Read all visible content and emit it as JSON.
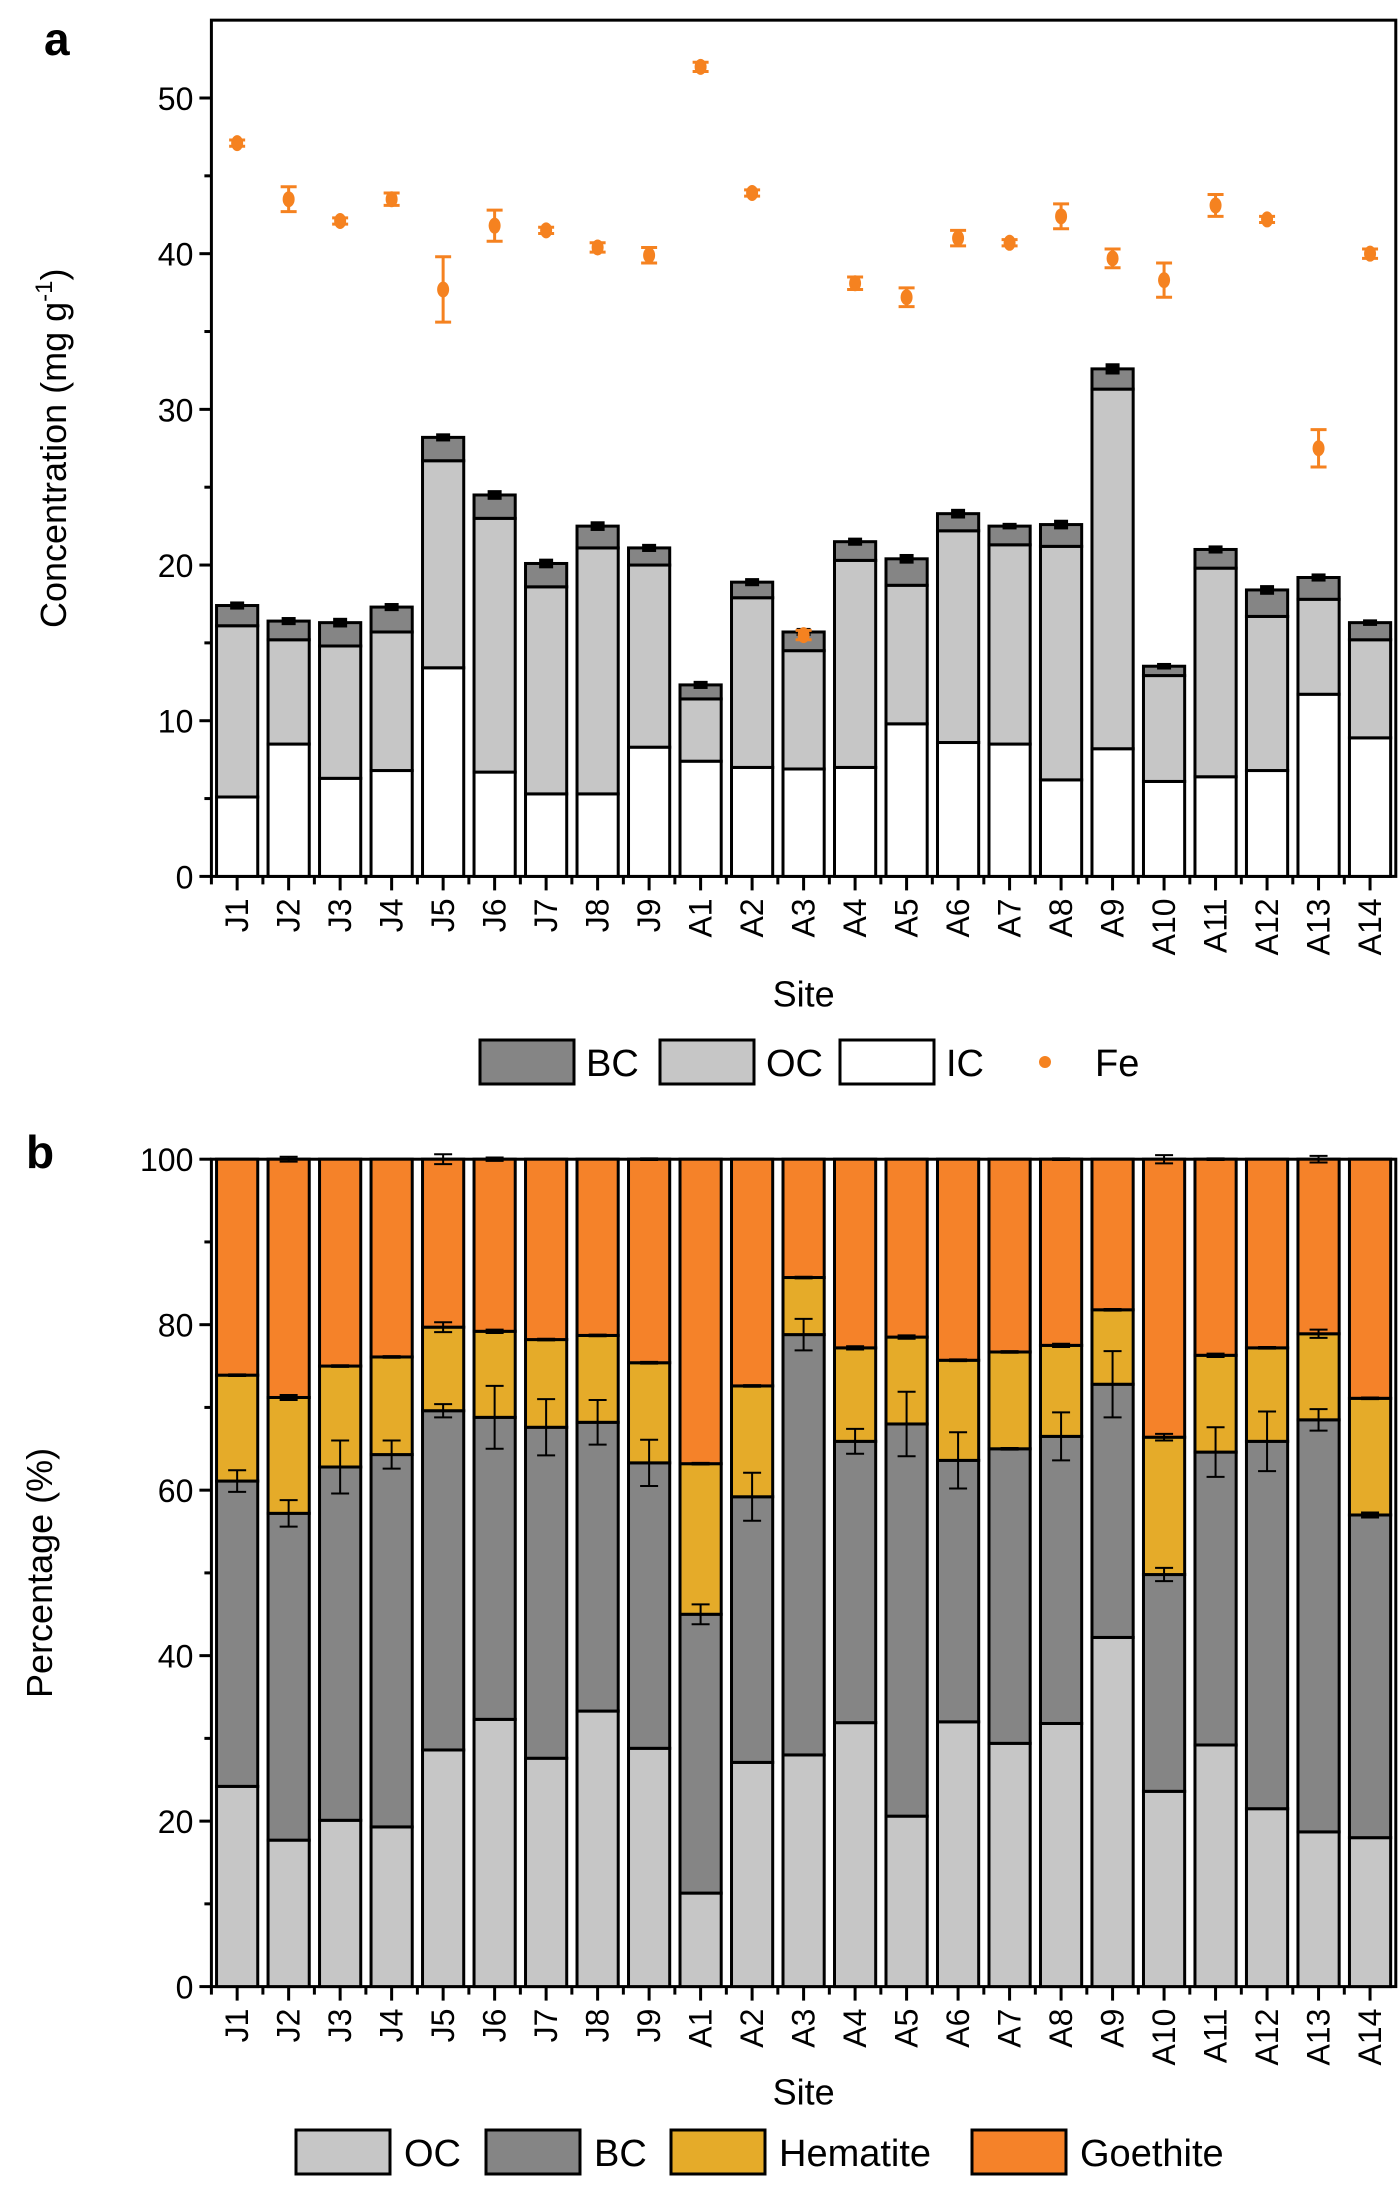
{
  "chart_data": [
    {
      "panel": "a",
      "type": "bar",
      "stacked": true,
      "xlabel": "Site",
      "ylabel": "Concentration (mg g-1)",
      "ylabel_base": "Concentration (mg g",
      "ylabel_sup": "-1",
      "ylabel_close": ")",
      "ylim": [
        0,
        55
      ],
      "yticks": [
        0,
        10,
        20,
        30,
        40,
        50
      ],
      "categories": [
        "J1",
        "J2",
        "J3",
        "J4",
        "J5",
        "J6",
        "J7",
        "J8",
        "J9",
        "A1",
        "A2",
        "A3",
        "A4",
        "A5",
        "A6",
        "A7",
        "A8",
        "A9",
        "A10",
        "A11",
        "A12",
        "A13",
        "A14"
      ],
      "series": [
        {
          "name": "IC",
          "color": "#ffffff",
          "values": [
            5.1,
            8.5,
            6.3,
            6.8,
            13.4,
            6.7,
            5.3,
            5.3,
            8.3,
            7.4,
            7.0,
            6.9,
            7.0,
            9.8,
            8.6,
            8.5,
            6.2,
            8.2,
            6.1,
            6.4,
            6.8,
            11.7,
            8.9
          ]
        },
        {
          "name": "OC",
          "color": "#c6c6c6",
          "values": [
            11.0,
            6.7,
            8.5,
            8.9,
            13.3,
            16.3,
            13.3,
            15.8,
            11.7,
            4.0,
            10.9,
            7.6,
            13.3,
            8.9,
            13.6,
            12.8,
            15.0,
            23.1,
            6.8,
            13.4,
            9.9,
            6.1,
            6.3
          ]
        },
        {
          "name": "BC",
          "color": "#858585",
          "values": [
            1.3,
            1.2,
            1.5,
            1.6,
            1.5,
            1.5,
            1.5,
            1.4,
            1.1,
            0.9,
            1.0,
            1.2,
            1.2,
            1.7,
            1.1,
            1.2,
            1.4,
            1.3,
            0.6,
            1.2,
            1.7,
            1.4,
            1.1
          ]
        }
      ],
      "bar_error": [
        0.1,
        0.1,
        0.15,
        0.1,
        0.1,
        0.15,
        0.15,
        0.15,
        0.1,
        0.1,
        0.1,
        0.1,
        0.1,
        0.15,
        0.15,
        0.05,
        0.15,
        0.2,
        0.05,
        0.1,
        0.15,
        0.1,
        0.05
      ],
      "scatter": {
        "name": "Fe",
        "color": "#f58220",
        "values": [
          47.1,
          43.5,
          42.1,
          43.5,
          37.7,
          41.8,
          41.5,
          40.4,
          39.9,
          52.0,
          43.9,
          15.5,
          38.1,
          37.2,
          41.0,
          40.7,
          42.4,
          39.7,
          38.3,
          43.1,
          42.2,
          27.5,
          40.0
        ],
        "errors": [
          0.2,
          0.8,
          0.2,
          0.4,
          2.1,
          1.0,
          0.2,
          0.3,
          0.5,
          0.3,
          0.2,
          0.3,
          0.4,
          0.6,
          0.5,
          0.2,
          0.8,
          0.6,
          1.1,
          0.7,
          0.2,
          1.2,
          0.3
        ]
      },
      "legend": [
        "BC",
        "OC",
        "IC",
        "Fe"
      ],
      "legend_position": "bottom"
    },
    {
      "panel": "b",
      "type": "bar",
      "stacked": true,
      "xlabel": "Site",
      "ylabel": "Percentage (%)",
      "ylim": [
        0,
        100
      ],
      "yticks": [
        0,
        20,
        40,
        60,
        80,
        100
      ],
      "categories": [
        "J1",
        "J2",
        "J3",
        "J4",
        "J5",
        "J6",
        "J7",
        "J8",
        "J9",
        "A1",
        "A2",
        "A3",
        "A4",
        "A5",
        "A6",
        "A7",
        "A8",
        "A9",
        "A10",
        "A11",
        "A12",
        "A13",
        "A14"
      ],
      "series": [
        {
          "name": "OC",
          "color": "#c6c6c6",
          "values": [
            24.2,
            17.7,
            20.1,
            19.3,
            28.6,
            32.3,
            27.6,
            33.3,
            28.8,
            11.3,
            27.1,
            28.0,
            31.9,
            20.6,
            32.0,
            29.4,
            31.8,
            42.2,
            23.6,
            29.2,
            21.5,
            18.7,
            18.0
          ]
        },
        {
          "name": "BC",
          "color": "#858585",
          "values": [
            36.9,
            39.5,
            42.7,
            45.0,
            41.0,
            36.5,
            40.0,
            34.9,
            34.5,
            33.7,
            32.1,
            50.8,
            34.0,
            47.4,
            31.6,
            35.6,
            34.7,
            30.6,
            26.2,
            35.4,
            44.4,
            49.8,
            39.0
          ]
        },
        {
          "name": "Hematite",
          "color": "#e5ab29",
          "values": [
            12.8,
            14.0,
            12.2,
            11.8,
            10.1,
            10.4,
            10.6,
            10.5,
            12.1,
            18.2,
            13.4,
            6.9,
            11.3,
            10.5,
            12.1,
            11.7,
            11.0,
            9.0,
            16.6,
            11.7,
            11.3,
            10.4,
            14.1
          ]
        },
        {
          "name": "Goethite",
          "color": "#f58229",
          "values": [
            26.1,
            28.8,
            25.0,
            23.9,
            20.3,
            20.8,
            21.8,
            21.3,
            24.6,
            36.8,
            27.4,
            14.3,
            22.8,
            21.5,
            24.3,
            23.3,
            22.5,
            18.2,
            33.6,
            23.7,
            22.8,
            21.1,
            28.9
          ]
        }
      ],
      "bc_error": [
        1.3,
        1.6,
        3.2,
        1.7,
        0.8,
        3.8,
        3.4,
        2.7,
        2.8,
        1.2,
        2.9,
        1.9,
        1.5,
        3.9,
        3.4,
        0.1,
        2.9,
        4.0,
        0.8,
        3.0,
        3.6,
        1.3,
        0.3
      ],
      "hem_error": [
        0.1,
        0.3,
        0.1,
        0.1,
        0.6,
        0.2,
        0.1,
        0.1,
        0.1,
        0.1,
        0.1,
        0.1,
        0.2,
        0.2,
        0.1,
        0.1,
        0.2,
        0.1,
        0.4,
        0.2,
        0.1,
        0.5,
        0.1
      ],
      "top_error": [
        0,
        0.3,
        0,
        0,
        0.6,
        0.2,
        0,
        0,
        0.1,
        0,
        0,
        0,
        0,
        0,
        0,
        0,
        0.1,
        0,
        0.5,
        0.1,
        0,
        0.4,
        0
      ],
      "legend": [
        "OC",
        "BC",
        "Hematite",
        "Goethite"
      ],
      "legend_position": "bottom"
    }
  ],
  "labels": {
    "panel_a": "a",
    "panel_b": "b"
  }
}
